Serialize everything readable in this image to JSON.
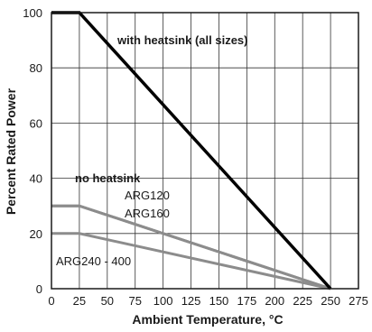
{
  "chart_data": {
    "type": "line",
    "xlabel": "Ambient Temperature, °C",
    "ylabel": "Percent Rated Power",
    "xlim": [
      0,
      275
    ],
    "ylim": [
      0,
      100
    ],
    "x_ticks": [
      0,
      25,
      50,
      75,
      100,
      125,
      150,
      175,
      200,
      225,
      250,
      275
    ],
    "y_ticks": [
      0,
      20,
      40,
      60,
      80,
      100
    ],
    "grid": true,
    "series": [
      {
        "name": "with heatsink (all sizes)",
        "color": "#000000",
        "x": [
          0,
          25,
          250
        ],
        "y": [
          100,
          100,
          0
        ]
      },
      {
        "name": "ARG120",
        "color": "#8c8c8c",
        "x": [
          0,
          25,
          250
        ],
        "y": [
          30,
          30,
          0
        ]
      },
      {
        "name": "ARG160",
        "color": "#8c8c8c",
        "x": [
          0,
          25,
          250
        ],
        "y": [
          30,
          30,
          0
        ]
      },
      {
        "name": "ARG240 - 400",
        "color": "#8c8c8c",
        "x": [
          0,
          25,
          250
        ],
        "y": [
          20,
          20,
          0
        ]
      }
    ],
    "annotations": {
      "with_heatsink": "with heatsink (all sizes)",
      "no_heatsink": "no heatsink",
      "arg120": "ARG120",
      "arg160": "ARG160",
      "arg240": "ARG240 - 400"
    }
  }
}
